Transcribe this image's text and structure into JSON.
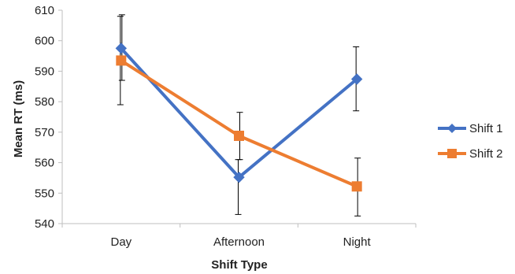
{
  "chart_data": {
    "type": "line",
    "title": "",
    "xlabel": "Shift Type",
    "ylabel": "Mean RT (ms)",
    "categories": [
      "Day",
      "Afternoon",
      "Night"
    ],
    "ylim": [
      540,
      610
    ],
    "yticks": [
      540,
      550,
      560,
      570,
      580,
      590,
      600,
      610
    ],
    "grid": false,
    "legend_position": "right",
    "series": [
      {
        "name": "Shift 1",
        "color": "#4472C4",
        "marker": "diamond",
        "values": [
          597.5,
          555.2,
          587.4
        ],
        "err_low": [
          579.0,
          543.0,
          577.0
        ],
        "err_high": [
          608.0,
          561.0,
          598.0
        ]
      },
      {
        "name": "Shift 2",
        "color": "#ED7D31",
        "marker": "square",
        "values": [
          593.5,
          568.8,
          552.2
        ],
        "err_low": [
          587.0,
          561.0,
          542.5
        ],
        "err_high": [
          608.5,
          576.5,
          561.5
        ]
      }
    ]
  }
}
